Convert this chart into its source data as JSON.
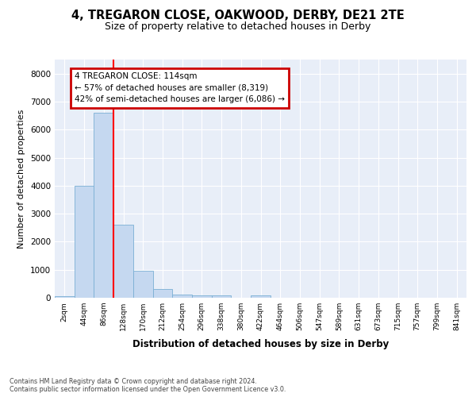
{
  "title1": "4, TREGARON CLOSE, OAKWOOD, DERBY, DE21 2TE",
  "title2": "Size of property relative to detached houses in Derby",
  "xlabel": "Distribution of detached houses by size in Derby",
  "ylabel": "Number of detached properties",
  "footnote": "Contains HM Land Registry data © Crown copyright and database right 2024.\nContains public sector information licensed under the Open Government Licence v3.0.",
  "bin_labels": [
    "2sqm",
    "44sqm",
    "86sqm",
    "128sqm",
    "170sqm",
    "212sqm",
    "254sqm",
    "296sqm",
    "338sqm",
    "380sqm",
    "422sqm",
    "464sqm",
    "506sqm",
    "547sqm",
    "589sqm",
    "631sqm",
    "673sqm",
    "715sqm",
    "757sqm",
    "799sqm",
    "841sqm"
  ],
  "bar_values": [
    70,
    4000,
    6600,
    2600,
    970,
    315,
    120,
    90,
    90,
    0,
    90,
    0,
    0,
    0,
    0,
    0,
    0,
    0,
    0,
    0,
    0
  ],
  "bar_color": "#c5d8f0",
  "bar_edge_color": "#7aafd4",
  "red_line_x": 2.5,
  "annotation_text": "4 TREGARON CLOSE: 114sqm\n← 57% of detached houses are smaller (8,319)\n42% of semi-detached houses are larger (6,086) →",
  "annotation_box_color": "#ffffff",
  "annotation_box_edge": "#cc0000",
  "ylim": [
    0,
    8500
  ],
  "yticks": [
    0,
    1000,
    2000,
    3000,
    4000,
    5000,
    6000,
    7000,
    8000
  ],
  "fig_background": "#ffffff",
  "plot_background": "#e8eef8",
  "grid_color": "#ffffff",
  "title1_fontsize": 10.5,
  "title2_fontsize": 9.0
}
